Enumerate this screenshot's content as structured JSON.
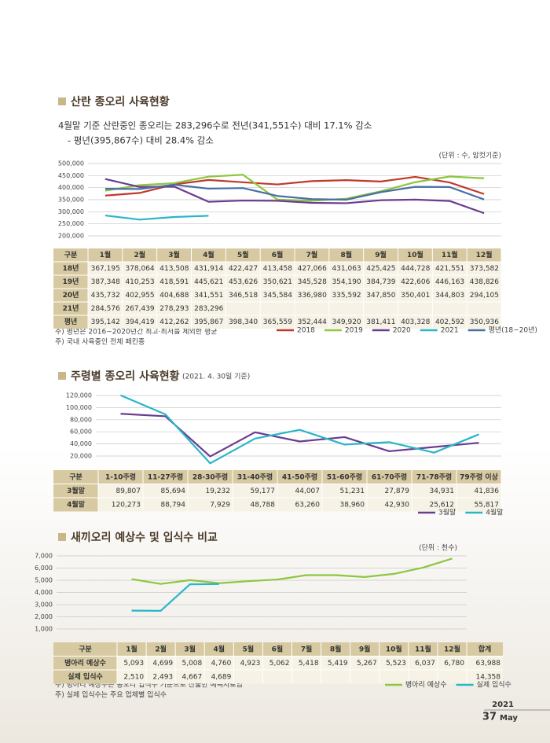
{
  "section1": {
    "heading": "산란 종오리 사육현황",
    "bullets": [
      "4월말 기준 산란중인 종오리는 283,296수로 전년(341,551수) 대비 17.1% 감소",
      "- 평년(395,867수) 대비 28.4% 감소"
    ],
    "unit": "(단위 : 수, 암컷기준)",
    "notes": [
      "주) 평년은 2016~2020년간 최고·최저를 제외한 평균",
      "주) 국내 사육중인 전체 페킨종"
    ]
  },
  "section2": {
    "heading": "주령별 종오리 사육현황",
    "date": "(2021. 4. 30일 기준)"
  },
  "section3": {
    "heading": "새끼오리 예상수 및 입식수 비교",
    "unit": "(단위 : 천수)",
    "notes": [
      "주) 병아리 예상수는 종오리 입식수 기준으로 산출한 예측자료임",
      "주) 실제 입식수는 주요 업체별 입식수"
    ]
  },
  "footer": {
    "year": "2021",
    "page": "37",
    "month": "May"
  },
  "chart_data": [
    {
      "type": "line",
      "table_header": "구분",
      "categories": [
        "1월",
        "2월",
        "3월",
        "4월",
        "5월",
        "6월",
        "7월",
        "8월",
        "9월",
        "10월",
        "11월",
        "12월"
      ],
      "ylim": [
        200000,
        500000
      ],
      "yticks": [
        {
          "value": 200000,
          "label": "200,000"
        },
        {
          "value": 250000,
          "label": "250,000"
        },
        {
          "value": 300000,
          "label": "300,000"
        },
        {
          "value": 350000,
          "label": "350,000"
        },
        {
          "value": 400000,
          "label": "400,000"
        },
        {
          "value": 450000,
          "label": "450,000"
        },
        {
          "value": 500000,
          "label": "500,000"
        }
      ],
      "grid": true,
      "series": [
        {
          "name": "2018",
          "row_label": "18년",
          "color": "#c0392b",
          "values": [
            367195,
            378064,
            413508,
            431914,
            422427,
            413458,
            427066,
            431063,
            425425,
            444728,
            421551,
            373582
          ],
          "value_labels": [
            "367,195",
            "378,064",
            "413,508",
            "431,914",
            "422,427",
            "413,458",
            "427,066",
            "431,063",
            "425,425",
            "444,728",
            "421,551",
            "373,582"
          ]
        },
        {
          "name": "2019",
          "row_label": "19년",
          "color": "#8dc63f",
          "values": [
            387348,
            410253,
            418591,
            445621,
            453626,
            350621,
            345528,
            354190,
            384739,
            422606,
            446163,
            438826
          ],
          "value_labels": [
            "387,348",
            "410,253",
            "418,591",
            "445,621",
            "453,626",
            "350,621",
            "345,528",
            "354,190",
            "384,739",
            "422,606",
            "446,163",
            "438,826"
          ]
        },
        {
          "name": "2020",
          "row_label": "20년",
          "color": "#6a3d8f",
          "values": [
            435732,
            402955,
            404688,
            341551,
            346518,
            345584,
            336980,
            335592,
            347850,
            350401,
            344803,
            294105
          ],
          "value_labels": [
            "435,732",
            "402,955",
            "404,688",
            "341,551",
            "346,518",
            "345,584",
            "336,980",
            "335,592",
            "347,850",
            "350,401",
            "344,803",
            "294,105"
          ]
        },
        {
          "name": "2021",
          "row_label": "21년",
          "color": "#29b6c8",
          "values": [
            284576,
            267439,
            278293,
            283296,
            null,
            null,
            null,
            null,
            null,
            null,
            null,
            null
          ],
          "value_labels": [
            "284,576",
            "267,439",
            "278,293",
            "283,296",
            null,
            null,
            null,
            null,
            null,
            null,
            null,
            null
          ]
        },
        {
          "name": "평년(18~20년)",
          "row_label": "평년",
          "color": "#4a6fa5",
          "values": [
            395142,
            394419,
            412262,
            395867,
            398340,
            365559,
            352444,
            349920,
            381411,
            403328,
            402592,
            350936
          ],
          "value_labels": [
            "395,142",
            "394,419",
            "412,262",
            "395,867",
            "398,340",
            "365,559",
            "352,444",
            "349,920",
            "381,411",
            "403,328",
            "402,592",
            "350,936"
          ]
        }
      ]
    },
    {
      "type": "line",
      "table_header": "구분",
      "categories": [
        "1-10주령",
        "11-27주령",
        "28-30주령",
        "31-40주령",
        "41-50주령",
        "51-60주령",
        "61-70주령",
        "71-78주령",
        "79주령 이상"
      ],
      "ylim": [
        0,
        120000
      ],
      "yticks": [
        {
          "value": 20000,
          "label": "20,000"
        },
        {
          "value": 40000,
          "label": "40,000"
        },
        {
          "value": 60000,
          "label": "60,000"
        },
        {
          "value": 80000,
          "label": "80,000"
        },
        {
          "value": 100000,
          "label": "100,000"
        },
        {
          "value": 120000,
          "label": "120,000"
        }
      ],
      "grid": true,
      "series": [
        {
          "name": "3월말",
          "row_label": "3월말",
          "color": "#6a3d8f",
          "values": [
            89807,
            85694,
            19232,
            59177,
            44007,
            51231,
            27879,
            34931,
            41836
          ],
          "value_labels": [
            "89,807",
            "85,694",
            "19,232",
            "59,177",
            "44,007",
            "51,231",
            "27,879",
            "34,931",
            "41,836"
          ]
        },
        {
          "name": "4월말",
          "row_label": "4월말",
          "color": "#29b6c8",
          "values": [
            120273,
            88794,
            7929,
            48788,
            63260,
            38960,
            42930,
            25612,
            55817
          ],
          "value_labels": [
            "120,273",
            "88,794",
            "7,929",
            "48,788",
            "63,260",
            "38,960",
            "42,930",
            "25,612",
            "55,817"
          ]
        }
      ]
    },
    {
      "type": "line",
      "table_header": "구분",
      "total_header": "합계",
      "categories": [
        "1월",
        "2월",
        "3월",
        "4월",
        "5월",
        "6월",
        "7월",
        "8월",
        "9월",
        "10월",
        "11월",
        "12월"
      ],
      "ylim": [
        0,
        7000
      ],
      "yticks": [
        {
          "value": 1000,
          "label": "1,000"
        },
        {
          "value": 2000,
          "label": "2,000"
        },
        {
          "value": 3000,
          "label": "3,000"
        },
        {
          "value": 4000,
          "label": "4,000"
        },
        {
          "value": 5000,
          "label": "5,000"
        },
        {
          "value": 6000,
          "label": "6,000"
        },
        {
          "value": 7000,
          "label": "7,000"
        }
      ],
      "grid": true,
      "series": [
        {
          "name": "병아리 예상수",
          "row_label": "병아리 예상수",
          "color": "#8dc63f",
          "total": "63,988",
          "values": [
            5093,
            4699,
            5008,
            4760,
            4923,
            5062,
            5418,
            5419,
            5267,
            5523,
            6037,
            6780
          ],
          "value_labels": [
            "5,093",
            "4,699",
            "5,008",
            "4,760",
            "4,923",
            "5,062",
            "5,418",
            "5,419",
            "5,267",
            "5,523",
            "6,037",
            "6,780"
          ]
        },
        {
          "name": "실제 입식수",
          "row_label": "실제 입식수",
          "color": "#29b6c8",
          "total": "14,358",
          "values": [
            2510,
            2493,
            4667,
            4689,
            null,
            null,
            null,
            null,
            null,
            null,
            null,
            null
          ],
          "value_labels": [
            "2,510",
            "2,493",
            "4,667",
            "4,689",
            null,
            null,
            null,
            null,
            null,
            null,
            null,
            null
          ]
        }
      ]
    }
  ]
}
